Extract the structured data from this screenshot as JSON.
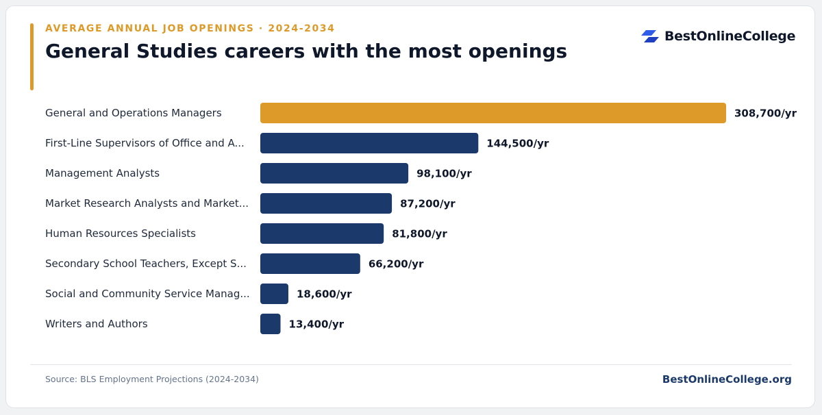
{
  "header": {
    "kicker": "AVERAGE ANNUAL JOB OPENINGS · 2024-2034",
    "title": "General Studies careers with the most openings"
  },
  "brand": {
    "name": "BestOnlineCollege",
    "icon": "brand-logo-icon"
  },
  "colors": {
    "accent": "#dd9a29",
    "bar": "#1b3a6b",
    "highlight": "#dd9a29"
  },
  "chart_data": {
    "type": "bar",
    "orientation": "horizontal",
    "categories": [
      "General and Operations Managers",
      "First-Line Supervisors of Office and Administrative Support Workers",
      "Management Analysts",
      "Market Research Analysts and Marketing Specialists",
      "Human Resources Specialists",
      "Secondary School Teachers, Except Special and Career/Technical Education",
      "Social and Community Service Managers",
      "Writers and Authors"
    ],
    "category_labels": [
      "General and Operations Managers",
      "First-Line Supervisors of Office and A...",
      "Management Analysts",
      "Market Research Analysts and Market...",
      "Human Resources Specialists",
      "Secondary School Teachers, Except S...",
      "Social and Community Service Manag...",
      "Writers and Authors"
    ],
    "values": [
      308700,
      144500,
      98100,
      87200,
      81800,
      66200,
      18600,
      13400
    ],
    "value_labels": [
      "308,700/yr",
      "144,500/yr",
      "98,100/yr",
      "87,200/yr",
      "81,800/yr",
      "66,200/yr",
      "18,600/yr",
      "13,400/yr"
    ],
    "highlighted_index": 0,
    "xlim": [
      0,
      308700
    ],
    "grid": false,
    "legend": "none"
  },
  "footer": {
    "source": "Source: BLS Employment Projections (2024-2034)",
    "site": "BestOnlineCollege.org"
  }
}
